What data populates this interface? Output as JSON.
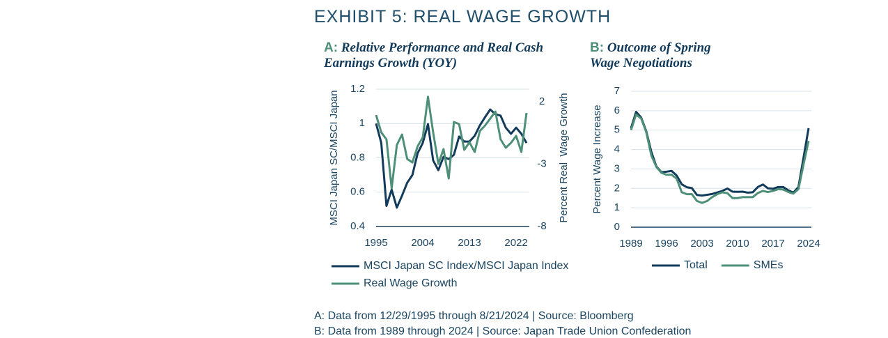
{
  "title": "EXHIBIT 5: REAL WAGE GROWTH",
  "chart_data": [
    {
      "type": "line",
      "label": "A:",
      "title": "Relative Performance and Real Cash Earnings Growth (YOY)",
      "y_label": "MSCI Japan SC/MSCI Japan",
      "y2_label": "Percent Real  Wage Growth",
      "x": [
        1995,
        1996,
        1997,
        1998,
        1999,
        2000,
        2001,
        2002,
        2003,
        2004,
        2005,
        2006,
        2007,
        2008,
        2009,
        2010,
        2011,
        2012,
        2013,
        2014,
        2015,
        2016,
        2017,
        2018,
        2019,
        2020,
        2021,
        2022,
        2023,
        2024
      ],
      "xlim": [
        1995,
        2024
      ],
      "xticks": [
        1995,
        2004,
        2013,
        2022
      ],
      "ylim": [
        0.4,
        1.2
      ],
      "yticks": [
        0.4,
        0.6,
        0.8,
        1,
        1.2
      ],
      "y2lim": [
        -8,
        3
      ],
      "y2ticks": [
        -8,
        -3,
        2
      ],
      "grid": true,
      "series": [
        {
          "name": "MSCI Japan SC Index/MSCI Japan Index",
          "color": "#123a5a",
          "values": [
            1.0,
            0.887,
            0.52,
            0.615,
            0.51,
            0.58,
            0.655,
            0.7,
            0.826,
            0.887,
            0.997,
            0.785,
            0.728,
            0.806,
            0.793,
            0.818,
            0.924,
            0.895,
            0.895,
            0.928,
            0.989,
            1.037,
            1.082,
            1.054,
            1.046,
            0.976,
            0.94,
            0.976,
            0.94,
            0.887
          ]
        },
        {
          "name": "Real Wage Growth",
          "color": "#4e8f78",
          "axis": "y2",
          "values": [
            0.93,
            -0.46,
            -1.02,
            -4.93,
            -1.47,
            -0.63,
            -2.59,
            -2.87,
            -1.58,
            -0.85,
            2.39,
            -0.46,
            -2.98,
            -1.8,
            -4.15,
            0.37,
            0.21,
            -1.86,
            -1.25,
            -2.03,
            -0.35,
            0.09,
            0.65,
            1.21,
            -1.02,
            -1.69,
            -1.3,
            -0.74,
            -2.03,
            1.1
          ]
        }
      ]
    },
    {
      "type": "line",
      "label": "B:",
      "title": "Outcome of Spring Wage Negotiations",
      "y_label": "Percent Wage Increase",
      "x": [
        1989,
        1990,
        1991,
        1992,
        1993,
        1994,
        1995,
        1996,
        1997,
        1998,
        1999,
        2000,
        2001,
        2002,
        2003,
        2004,
        2005,
        2006,
        2007,
        2008,
        2009,
        2010,
        2011,
        2012,
        2013,
        2014,
        2015,
        2016,
        2017,
        2018,
        2019,
        2020,
        2021,
        2022,
        2023,
        2024
      ],
      "xlim": [
        1989,
        2024
      ],
      "xticks": [
        1989,
        1996,
        2003,
        2010,
        2017,
        2024
      ],
      "ylim": [
        0,
        7
      ],
      "yticks": [
        0,
        1,
        2,
        3,
        4,
        5,
        6,
        7
      ],
      "grid": true,
      "series": [
        {
          "name": "Total",
          "color": "#123a5a",
          "values": [
            5.1,
            5.94,
            5.65,
            4.95,
            3.89,
            3.13,
            2.83,
            2.86,
            2.9,
            2.66,
            2.21,
            2.06,
            2.01,
            1.66,
            1.63,
            1.67,
            1.71,
            1.79,
            1.87,
            1.99,
            1.83,
            1.82,
            1.83,
            1.78,
            1.8,
            2.07,
            2.2,
            2.0,
            1.98,
            2.07,
            2.07,
            1.9,
            1.78,
            2.07,
            3.58,
            5.1
          ]
        },
        {
          "name": "SMEs",
          "color": "#4e8f78",
          "values": [
            5.0,
            5.8,
            5.6,
            4.9,
            3.7,
            3.1,
            2.8,
            2.7,
            2.7,
            2.5,
            1.8,
            1.7,
            1.7,
            1.35,
            1.25,
            1.35,
            1.55,
            1.7,
            1.8,
            1.75,
            1.5,
            1.5,
            1.55,
            1.55,
            1.55,
            1.76,
            1.87,
            1.81,
            1.87,
            1.96,
            1.94,
            1.81,
            1.73,
            1.96,
            3.23,
            4.45
          ]
        }
      ]
    }
  ],
  "footnotes": [
    "A: Data from 12/29/1995 through 8/21/2024 | Source: Bloomberg",
    "B: Data from 1989 through 2024 | Source: Japan Trade Union Confederation"
  ]
}
